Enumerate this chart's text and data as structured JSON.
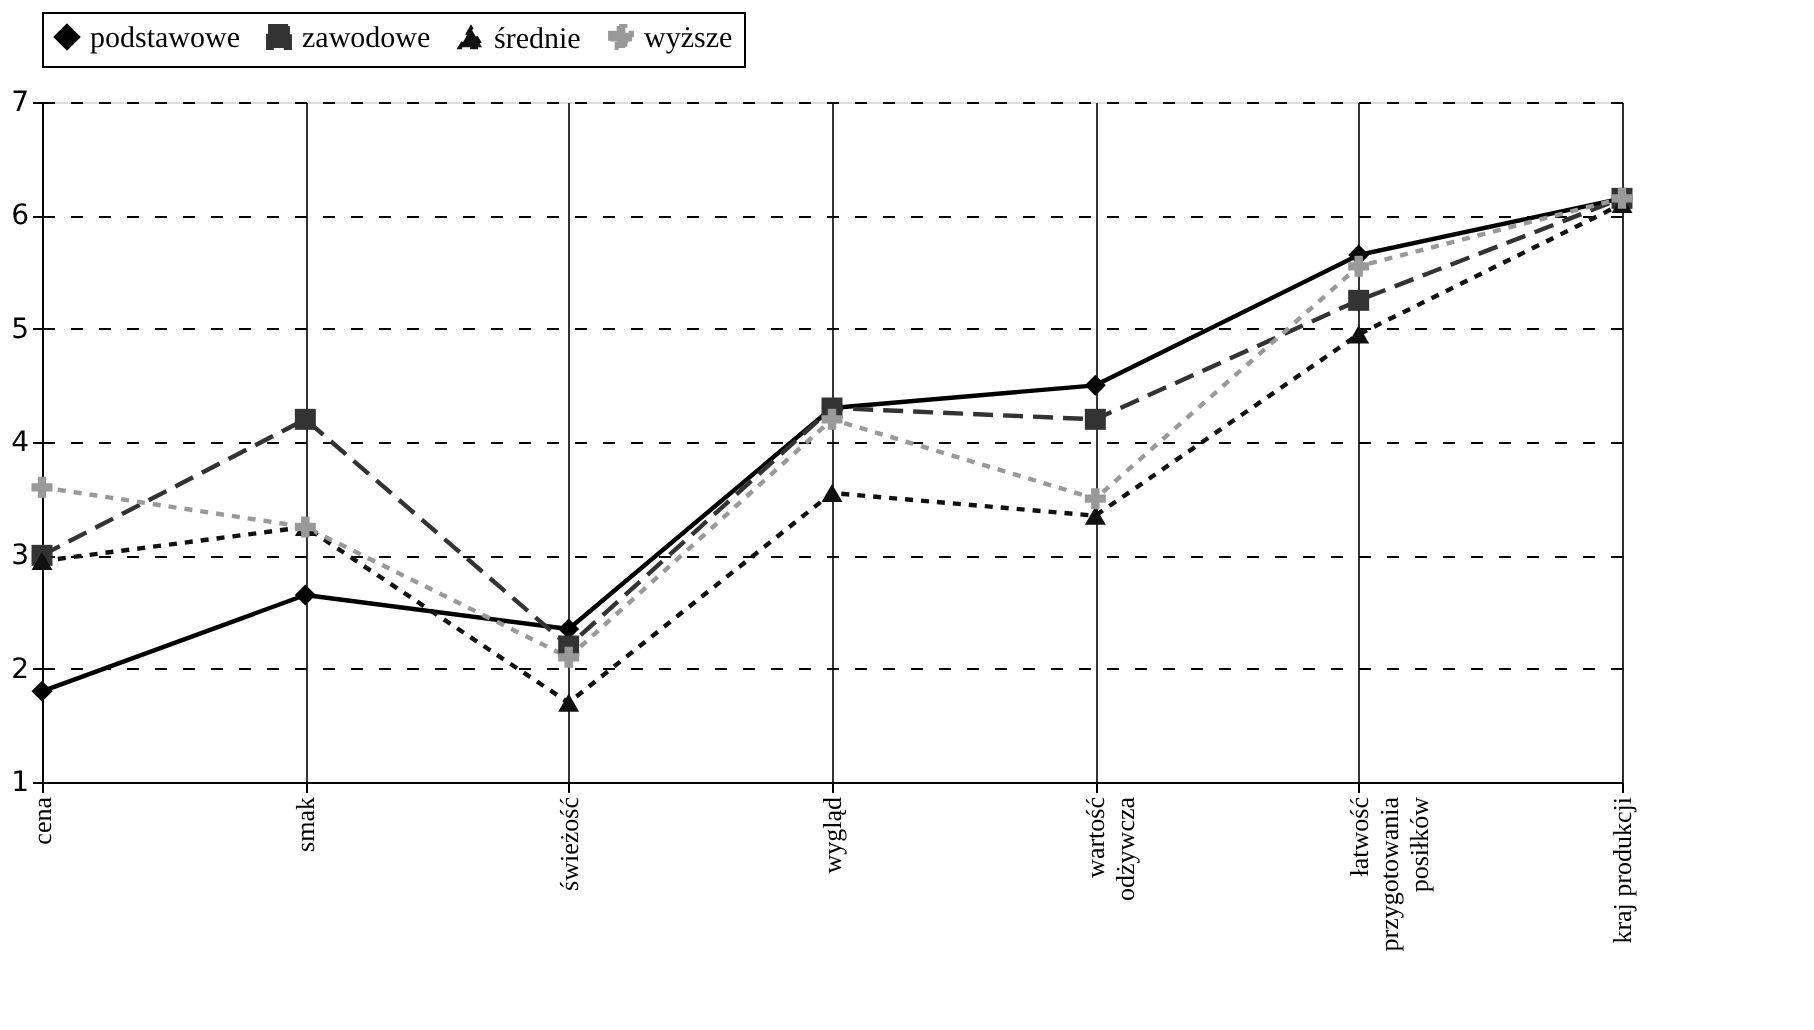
{
  "chart_data": {
    "type": "line",
    "categories": [
      "cena",
      "smak",
      "świeżość",
      "wygląd",
      "wartość\nodżywcza",
      "łatwość\nprzygotowania\nposiłków",
      "kraj produkcji"
    ],
    "series": [
      {
        "name": "podstawowe",
        "color": "#000000",
        "marker": "diamond",
        "line_style": "solid",
        "values": [
          1.8,
          2.65,
          2.35,
          4.3,
          4.5,
          5.65,
          6.15
        ]
      },
      {
        "name": "zawodowe",
        "color": "#333333",
        "marker": "square",
        "line_style": "dashed",
        "values": [
          3.0,
          4.2,
          2.2,
          4.3,
          4.2,
          5.25,
          6.15
        ]
      },
      {
        "name": "średnie",
        "color": "#111111",
        "marker": "triangle",
        "line_style": "dotted",
        "values": [
          2.95,
          3.25,
          1.7,
          3.55,
          3.35,
          4.95,
          6.1
        ]
      },
      {
        "name": "wyższe",
        "color": "#999999",
        "marker": "cross",
        "line_style": "dotted",
        "values": [
          3.6,
          3.25,
          2.1,
          4.2,
          3.5,
          5.55,
          6.15
        ]
      }
    ],
    "ylim": [
      1,
      7
    ],
    "yticks": [
      1,
      2,
      3,
      4,
      5,
      6,
      7
    ],
    "grid": true,
    "legend": "top"
  }
}
